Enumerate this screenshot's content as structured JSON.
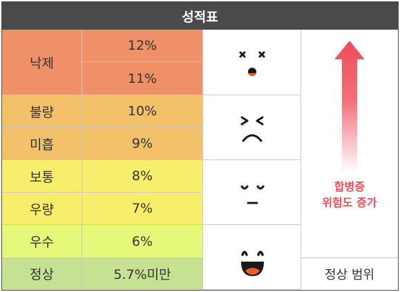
{
  "title": "성적표",
  "colors": {
    "fail": "#ef9068",
    "poor": "#f3c16a",
    "average": "#f7ee6c",
    "excellent": "#e6f87a",
    "normal": "#c6e192",
    "arrow": "#ef4c57"
  },
  "rows": [
    {
      "grade": "낙제",
      "values": [
        "12%",
        "11%"
      ]
    },
    {
      "grade": "불량",
      "values": [
        "10%"
      ]
    },
    {
      "grade": "미흡",
      "values": [
        "9%"
      ]
    },
    {
      "grade": "보통",
      "values": [
        "8%"
      ]
    },
    {
      "grade": "우량",
      "values": [
        "7%"
      ]
    },
    {
      "grade": "우수",
      "values": [
        "6%"
      ]
    },
    {
      "grade": "정상",
      "values": [
        "5.7%미만"
      ]
    }
  ],
  "faces": [
    "dizzy-face-icon",
    "wince-face-icon",
    "neutral-face-icon",
    "laughing-face-icon"
  ],
  "trend": {
    "line1": "합병증",
    "line2": "위험도 증가",
    "normal_range": "정상 범위"
  }
}
